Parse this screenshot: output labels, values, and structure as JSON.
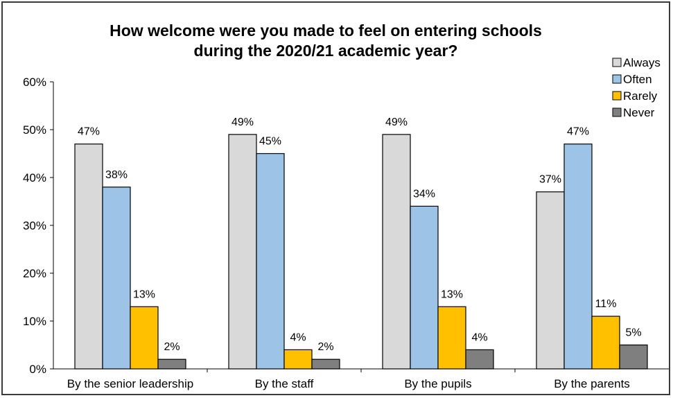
{
  "chart_data": {
    "type": "bar",
    "title_lines": [
      "How welcome were you made to feel on entering schools",
      "during the 2020/21 academic year?"
    ],
    "categories": [
      "By the senior leadership",
      "By the staff",
      "By the pupils",
      "By the parents"
    ],
    "series": [
      {
        "name": "Always",
        "color": "#d9d9d9",
        "values": [
          47,
          49,
          49,
          37
        ]
      },
      {
        "name": "Often",
        "color": "#9dc3e6",
        "values": [
          38,
          45,
          34,
          47
        ]
      },
      {
        "name": "Rarely",
        "color": "#ffc000",
        "values": [
          13,
          4,
          13,
          11
        ]
      },
      {
        "name": "Never",
        "color": "#7f7f7f",
        "values": [
          2,
          2,
          4,
          5
        ]
      }
    ],
    "data_label_suffix": "%",
    "ylim": [
      0,
      60
    ],
    "y_ticks": [
      "0%",
      "10%",
      "20%",
      "30%",
      "40%",
      "50%",
      "60%"
    ],
    "y_tick_values": [
      0,
      10,
      20,
      30,
      40,
      50,
      60
    ],
    "legend_position": "top-right",
    "grid": false
  }
}
